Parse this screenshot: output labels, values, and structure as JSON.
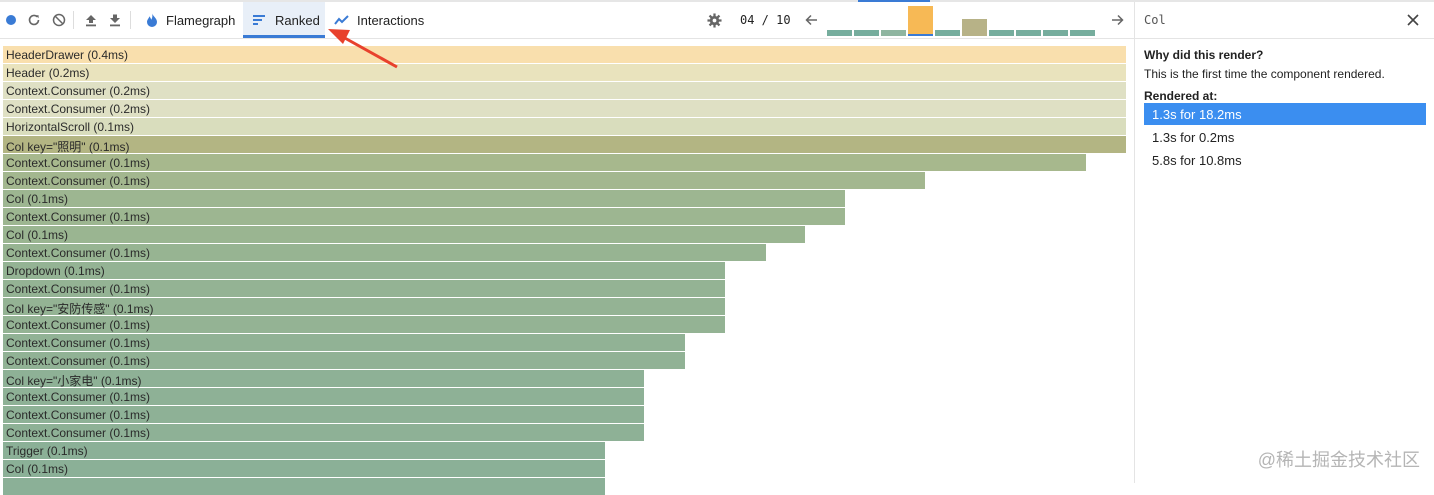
{
  "toolbar": {
    "tabs": [
      {
        "label": "Flamegraph",
        "icon": "flame-icon"
      },
      {
        "label": "Ranked",
        "icon": "ranked-icon",
        "selected": true
      },
      {
        "label": "Interactions",
        "icon": "interactions-icon"
      }
    ],
    "commit_counter": "04 / 10",
    "colors": {
      "record": "#3a7bd5",
      "icon": "#666666",
      "accent": "#3a7bd5"
    }
  },
  "commit_bars": [
    {
      "value": 0.2,
      "color": "#76ad9d"
    },
    {
      "value": 0.2,
      "color": "#76ad9d"
    },
    {
      "value": 0.2,
      "color": "#8fb5a0"
    },
    {
      "value": 1.0,
      "color": "#f7b955",
      "selected": true
    },
    {
      "value": 0.2,
      "color": "#76ad9d"
    },
    {
      "value": 0.6,
      "color": "#b7b287"
    },
    {
      "value": 0.2,
      "color": "#76ad9d"
    },
    {
      "value": 0.2,
      "color": "#76ad9d"
    },
    {
      "value": 0.2,
      "color": "#76ad9d"
    },
    {
      "value": 0.2,
      "color": "#76ad9d"
    }
  ],
  "ranked": [
    {
      "label": "HeaderDrawer (0.4ms)",
      "fraction": 1.0,
      "color": "#f9dfad"
    },
    {
      "label": "Header (0.2ms)",
      "fraction": 1.0,
      "color": "#e9e3bd"
    },
    {
      "label": "Context.Consumer (0.2ms)",
      "fraction": 1.0,
      "color": "#dfe0c4"
    },
    {
      "label": "Context.Consumer (0.2ms)",
      "fraction": 1.0,
      "color": "#dfe0c4"
    },
    {
      "label": "HorizontalScroll (0.1ms)",
      "fraction": 1.0,
      "color": "#d9ddbd"
    },
    {
      "label": "Col key=\"照明\" (0.1ms)",
      "fraction": 1.0,
      "color": "#b3b583"
    },
    {
      "label": "Context.Consumer (0.1ms)",
      "fraction": 0.964,
      "color": "#a7b88d"
    },
    {
      "label": "Context.Consumer (0.1ms)",
      "fraction": 0.821,
      "color": "#a3b78f"
    },
    {
      "label": "Col (0.1ms)",
      "fraction": 0.75,
      "color": "#9db691"
    },
    {
      "label": "Context.Consumer (0.1ms)",
      "fraction": 0.75,
      "color": "#9db691"
    },
    {
      "label": "Col (0.1ms)",
      "fraction": 0.714,
      "color": "#9ab591"
    },
    {
      "label": "Context.Consumer (0.1ms)",
      "fraction": 0.679,
      "color": "#97b492"
    },
    {
      "label": "Dropdown (0.1ms)",
      "fraction": 0.643,
      "color": "#94b394"
    },
    {
      "label": "Context.Consumer (0.1ms)",
      "fraction": 0.643,
      "color": "#94b394"
    },
    {
      "label": "Col key=\"安防传感\" (0.1ms)",
      "fraction": 0.643,
      "color": "#94b394"
    },
    {
      "label": "Context.Consumer (0.1ms)",
      "fraction": 0.643,
      "color": "#94b394"
    },
    {
      "label": "Context.Consumer (0.1ms)",
      "fraction": 0.607,
      "color": "#91b295"
    },
    {
      "label": "Context.Consumer (0.1ms)",
      "fraction": 0.607,
      "color": "#91b295"
    },
    {
      "label": "Col key=\"小家电\" (0.1ms)",
      "fraction": 0.571,
      "color": "#8eb196"
    },
    {
      "label": "Context.Consumer (0.1ms)",
      "fraction": 0.571,
      "color": "#8eb196"
    },
    {
      "label": "Context.Consumer (0.1ms)",
      "fraction": 0.571,
      "color": "#8eb196"
    },
    {
      "label": "Context.Consumer (0.1ms)",
      "fraction": 0.571,
      "color": "#8eb196"
    },
    {
      "label": "Trigger (0.1ms)",
      "fraction": 0.536,
      "color": "#8bb097"
    },
    {
      "label": "Col (0.1ms)",
      "fraction": 0.536,
      "color": "#8bb097"
    },
    {
      "label": "",
      "fraction": 0.536,
      "color": "#8bb097"
    }
  ],
  "panel": {
    "title": "Col",
    "why_heading": "Why did this render?",
    "why_text": "This is the first time the component rendered.",
    "rendered_heading": "Rendered at:",
    "renders": [
      {
        "label": "1.3s for 18.2ms",
        "selected": true
      },
      {
        "label": "1.3s for 0.2ms"
      },
      {
        "label": "5.8s for 10.8ms"
      }
    ],
    "selected_color": "#3b8ef0"
  },
  "annotation": {
    "color": "#e8412c",
    "icon": "red-arrow-annotation"
  },
  "watermark": "@稀土掘金技术社区"
}
